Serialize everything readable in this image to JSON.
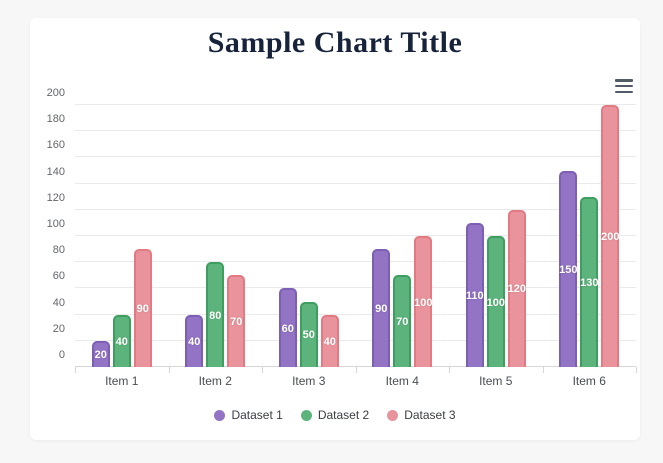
{
  "page": {
    "background_color": "#f7f7f7",
    "card_color": "#ffffff"
  },
  "header": {
    "title": "Sample Chart Title",
    "title_color": "#16233a"
  },
  "chart_data": {
    "type": "bar",
    "title": "Sample Chart Title",
    "categories": [
      "Item 1",
      "Item 2",
      "Item 3",
      "Item 4",
      "Item 5",
      "Item 6"
    ],
    "series": [
      {
        "name": "Dataset 1",
        "fill": "#9273c4",
        "border": "#7c5fb5",
        "values": [
          20,
          40,
          60,
          90,
          110,
          150
        ]
      },
      {
        "name": "Dataset 2",
        "fill": "#5cb47c",
        "border": "#3e9e60",
        "values": [
          40,
          80,
          50,
          70,
          100,
          130
        ]
      },
      {
        "name": "Dataset 3",
        "fill": "#e9949c",
        "border": "#e27983",
        "values": [
          90,
          70,
          40,
          100,
          120,
          200
        ]
      }
    ],
    "ylim": [
      0,
      200
    ],
    "yticks": [
      0,
      20,
      40,
      60,
      80,
      100,
      120,
      140,
      160,
      180,
      200
    ],
    "grid": true,
    "legend_position": "bottom",
    "value_labels": "white bold centered inside bars",
    "icons": {
      "menu": "hamburger-icon"
    }
  }
}
